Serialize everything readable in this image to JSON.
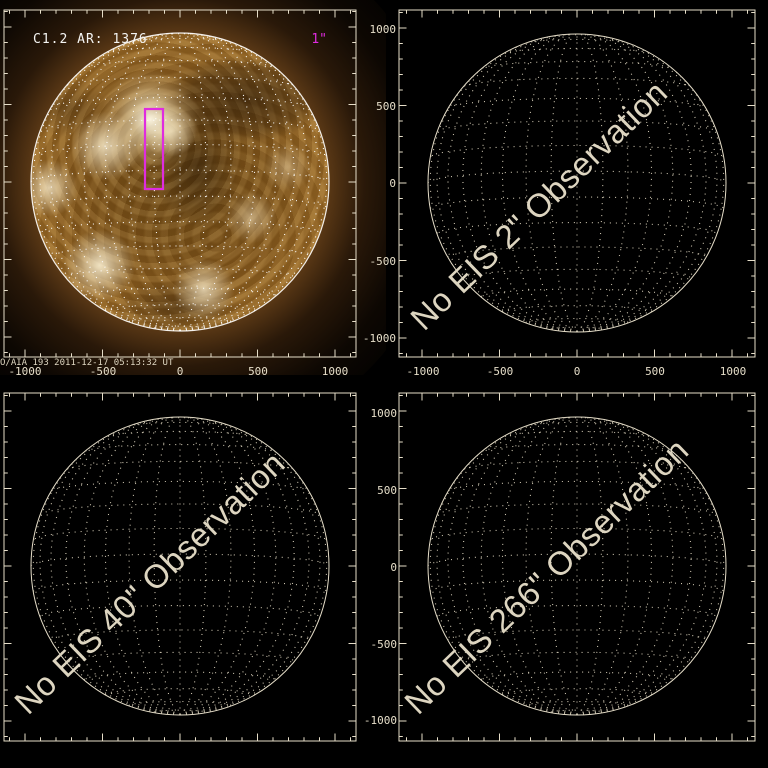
{
  "colors": {
    "background": "#000000",
    "axis_cream": "#e6dec9",
    "label_cream": "#ddd5c0",
    "white_text": "#f4f4f2",
    "magenta": "#df2cdf",
    "grid_dots_white": "#ffffff",
    "grid_dots_cream": "#cfc7b2",
    "sun_core": "#8a5d1e",
    "sun_rim": "#f7ead0"
  },
  "panel_aia": {
    "flare_class_label": "C1.2 AR: 1376",
    "scale_label": "1\"",
    "timestamp_label": "O/AIA 193  2011-12-17 05:13:32 UT",
    "x_tick_labels": [
      "-1000",
      "-500",
      "0",
      "500",
      "1000"
    ]
  },
  "panel_eis_2": {
    "no_observation_label": "No EIS 2\" Observation",
    "x_tick_labels": [
      "-1000",
      "-500",
      "0",
      "500",
      "1000"
    ],
    "y_tick_labels": [
      "1000",
      "500",
      "0",
      "-500",
      "-1000"
    ]
  },
  "panel_eis_40": {
    "no_observation_label": "No EIS 40\" Observation"
  },
  "panel_eis_266": {
    "no_observation_label": "No EIS 266\" Observation",
    "y_tick_labels": [
      "1000",
      "500",
      "0",
      "-500",
      "-1000"
    ]
  },
  "chart_data": [
    {
      "type": "heatmap",
      "title": "C1.2 AR: 1376",
      "annotations": [
        "C1.2 AR: 1376",
        "1\"",
        "O/AIA 193 2011-12-17 05:13:32 UT"
      ],
      "xlabel": "",
      "ylabel": "",
      "xlim": [
        -1130,
        1130
      ],
      "ylim": [
        -1110,
        1130
      ],
      "x_ticks": [
        -1000,
        -500,
        0,
        500,
        1000
      ],
      "y_ticks": [
        -1000,
        -500,
        0,
        500,
        1000
      ],
      "solar_limb_radius_arcsec": 960,
      "heliographic_grid_step_deg": 10,
      "grid": true,
      "legend_position": "none",
      "raster_box_arcsec": {
        "x": [
          -225,
          -110
        ],
        "y": [
          -40,
          470
        ],
        "color": "#df2cdf"
      }
    },
    {
      "type": "scatter",
      "series": [],
      "annotations": [
        "No EIS 2\" Observation"
      ],
      "xlabel": "",
      "ylabel": "",
      "xlim": [
        -1130,
        1130
      ],
      "ylim": [
        -1110,
        1130
      ],
      "x_ticks": [
        -1000,
        -500,
        0,
        500,
        1000
      ],
      "y_ticks": [
        -1000,
        -500,
        0,
        500,
        1000
      ],
      "solar_limb_radius_arcsec": 960,
      "heliographic_grid_step_deg": 10,
      "grid": true,
      "legend_position": "none"
    },
    {
      "type": "scatter",
      "series": [],
      "annotations": [
        "No EIS 40\" Observation"
      ],
      "xlabel": "",
      "ylabel": "",
      "xlim": [
        -1130,
        1130
      ],
      "ylim": [
        -1110,
        1130
      ],
      "x_ticks": [
        -1000,
        -500,
        0,
        500,
        1000
      ],
      "y_ticks": [
        -1000,
        -500,
        0,
        500,
        1000
      ],
      "solar_limb_radius_arcsec": 960,
      "heliographic_grid_step_deg": 10,
      "grid": true,
      "legend_position": "none"
    },
    {
      "type": "scatter",
      "series": [],
      "annotations": [
        "No EIS 266\" Observation"
      ],
      "xlabel": "",
      "ylabel": "",
      "xlim": [
        -1130,
        1130
      ],
      "ylim": [
        -1110,
        1130
      ],
      "x_ticks": [
        -1000,
        -500,
        0,
        500,
        1000
      ],
      "y_ticks": [
        -1000,
        -500,
        0,
        500,
        1000
      ],
      "solar_limb_radius_arcsec": 960,
      "heliographic_grid_step_deg": 10,
      "grid": true,
      "legend_position": "none"
    }
  ]
}
